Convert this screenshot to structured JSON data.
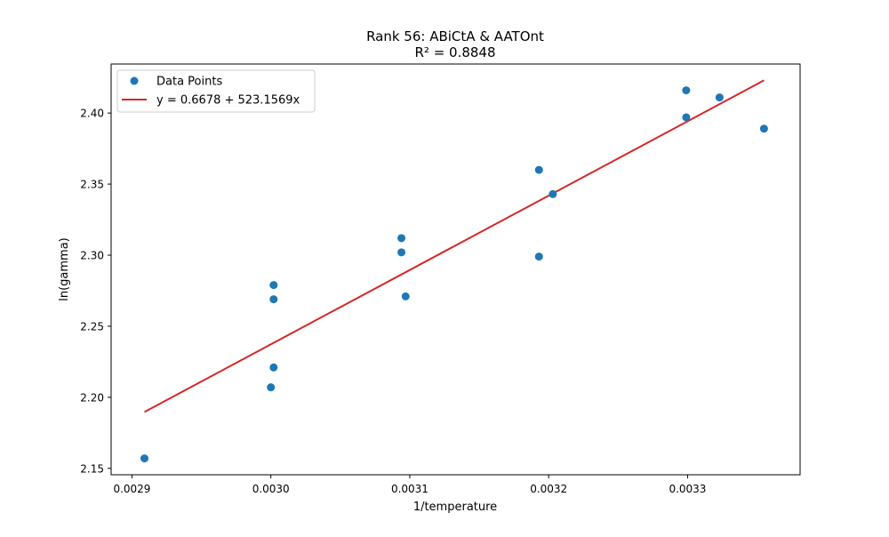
{
  "chart_data": {
    "type": "scatter",
    "title": "Rank 56: ABiCtA & AATOnt",
    "subtitle": "R² = 0.8848",
    "xlabel": "1/temperature",
    "ylabel": "ln(gamma)",
    "xlim": [
      0.002885,
      0.003381
    ],
    "ylim": [
      2.1455,
      2.4345
    ],
    "x_ticks": [
      0.0029,
      0.003,
      0.0031,
      0.0032,
      0.0033
    ],
    "x_tick_labels": [
      "0.0029",
      "0.0030",
      "0.0031",
      "0.0032",
      "0.0033"
    ],
    "y_ticks": [
      2.15,
      2.2,
      2.25,
      2.3,
      2.35,
      2.4
    ],
    "y_tick_labels": [
      "2.15",
      "2.20",
      "2.25",
      "2.30",
      "2.35",
      "2.40"
    ],
    "grid": false,
    "legend": {
      "placement": "top-left",
      "entries": [
        "Data Points",
        "y = 0.6678 + 523.1569x"
      ]
    },
    "series": [
      {
        "name": "Data Points",
        "kind": "scatter",
        "color": "#1f77b4",
        "points": [
          [
            0.002909,
            2.157
          ],
          [
            0.003,
            2.207
          ],
          [
            0.003002,
            2.221
          ],
          [
            0.003002,
            2.269
          ],
          [
            0.003002,
            2.279
          ],
          [
            0.003094,
            2.302
          ],
          [
            0.003094,
            2.312
          ],
          [
            0.003097,
            2.271
          ],
          [
            0.003193,
            2.299
          ],
          [
            0.003193,
            2.36
          ],
          [
            0.003203,
            2.343
          ],
          [
            0.003299,
            2.397
          ],
          [
            0.003299,
            2.416
          ],
          [
            0.003323,
            2.411
          ],
          [
            0.003355,
            2.389
          ]
        ]
      },
      {
        "name": "y = 0.6678 + 523.1569x",
        "kind": "line",
        "color": "#d62728",
        "intercept": 0.6678,
        "slope": 523.1569,
        "x_range": [
          0.002909,
          0.003355
        ]
      }
    ]
  }
}
